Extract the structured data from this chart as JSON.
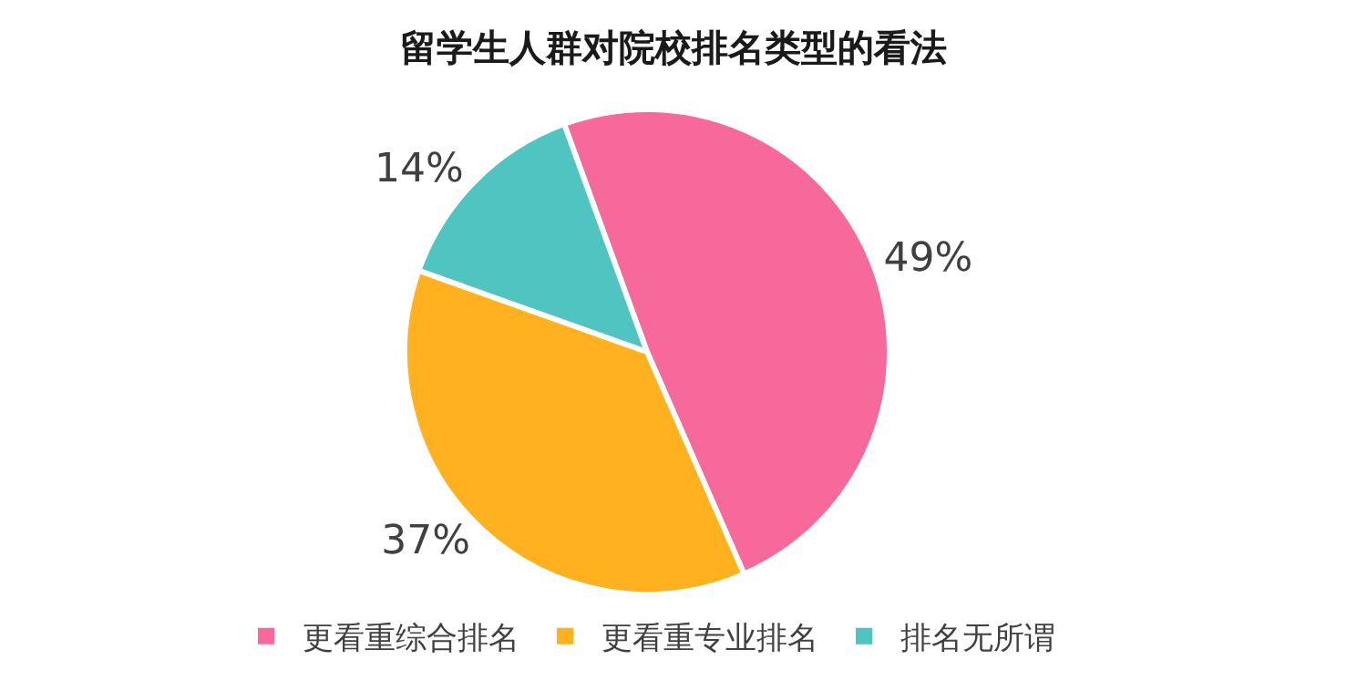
{
  "chart_data": {
    "type": "pie",
    "title": "留学生人群对院校排名类型的看法",
    "categories": [
      "更看重综合排名",
      "更看重专业排名",
      "排名无所谓"
    ],
    "values": [
      49,
      37,
      14
    ],
    "colors": [
      "#f7699a",
      "#ffb11f",
      "#4fc4c1"
    ],
    "value_labels": [
      "49%",
      "37%",
      "14%"
    ],
    "legend": "bottom"
  }
}
